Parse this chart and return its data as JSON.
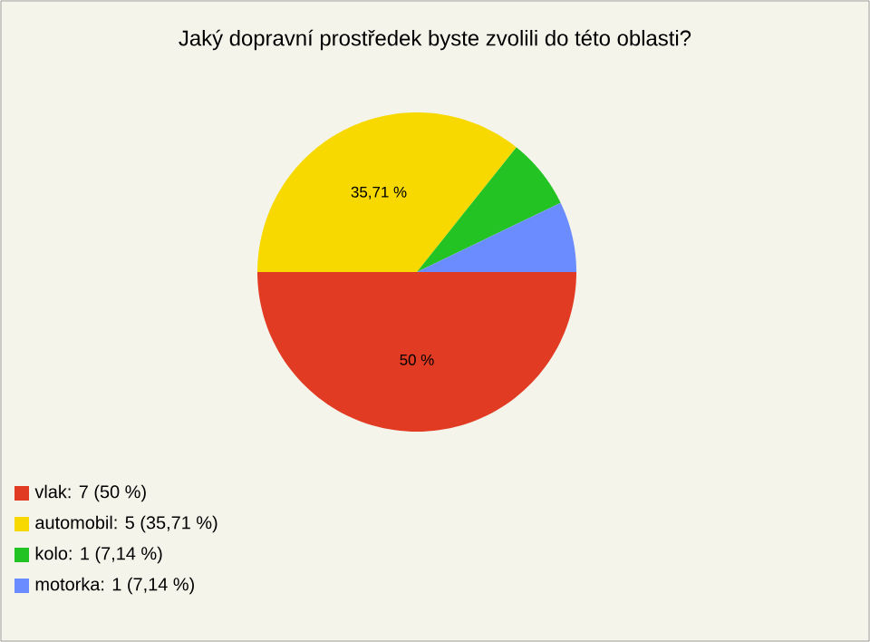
{
  "chart_data": {
    "type": "pie",
    "title": "Jaký dopravní prostředek byste zvolili do této oblasti?",
    "categories": [
      "vlak: 7 (50 %)",
      "automobil: 5 (35,71 %)",
      "kolo: 1 (7,14 %)",
      "motorka: 1 (7,14 %)"
    ],
    "values": [
      50,
      35.71,
      7.14,
      7.14
    ],
    "value_labels": [
      "50 %",
      "35,71 %",
      null,
      null
    ],
    "colors": [
      "#e23b24",
      "#f7d900",
      "#22c322",
      "#6a8cff"
    ],
    "legend": "bottom left"
  }
}
